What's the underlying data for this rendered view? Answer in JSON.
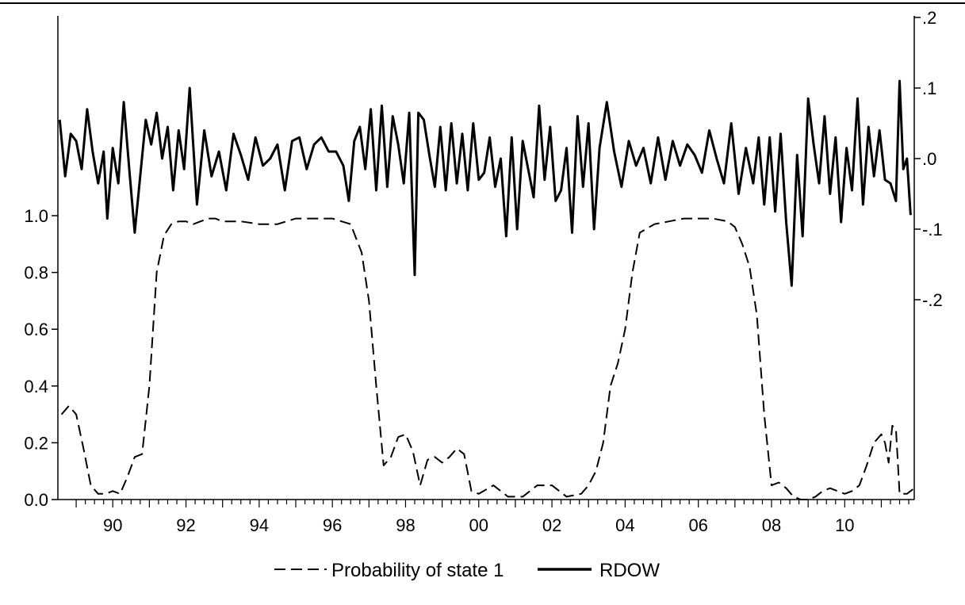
{
  "chart_data": {
    "type": "line",
    "title": "",
    "xlabel": "",
    "x_tick_labels": [
      "90",
      "92",
      "94",
      "96",
      "98",
      "00",
      "02",
      "04",
      "06",
      "08",
      "10"
    ],
    "x_range": [
      1988.5,
      2011.9
    ],
    "x_tick_positions": [
      1990,
      1992,
      1994,
      1996,
      1998,
      2000,
      2002,
      2004,
      2006,
      2008,
      2010
    ],
    "left_axis": {
      "ylim": [
        0.0,
        1.0
      ],
      "tick_labels": [
        "0.0",
        "0.2",
        "0.4",
        "0.6",
        "0.8",
        "1.0"
      ],
      "tick_values": [
        0.0,
        0.2,
        0.4,
        0.6,
        0.8,
        1.0
      ]
    },
    "right_axis": {
      "ylim": [
        -0.3,
        0.2
      ],
      "tick_labels": [
        ".2",
        ".1",
        ".0",
        "-.1",
        "-.2"
      ],
      "tick_values": [
        0.2,
        0.1,
        0.0,
        -0.1,
        -0.2
      ]
    },
    "grid": false,
    "legend_position": "bottom-center",
    "series": [
      {
        "name": "Probability of state 1",
        "axis": "left",
        "style": "dashed",
        "x": [
          1988.6,
          1988.8,
          1989.0,
          1989.2,
          1989.4,
          1989.6,
          1989.8,
          1990.0,
          1990.2,
          1990.4,
          1990.6,
          1990.8,
          1991.0,
          1991.2,
          1991.4,
          1991.6,
          1991.8,
          1992.0,
          1992.2,
          1992.4,
          1992.6,
          1992.8,
          1993.0,
          1993.5,
          1994.0,
          1994.5,
          1995.0,
          1995.5,
          1996.0,
          1996.5,
          1996.8,
          1997.0,
          1997.2,
          1997.4,
          1997.6,
          1997.8,
          1998.0,
          1998.2,
          1998.4,
          1998.6,
          1998.8,
          1999.0,
          1999.2,
          1999.4,
          1999.6,
          1999.8,
          2000.0,
          2000.4,
          2000.8,
          2001.2,
          2001.6,
          2002.0,
          2002.4,
          2002.8,
          2003.0,
          2003.2,
          2003.4,
          2003.6,
          2003.8,
          2004.0,
          2004.2,
          2004.4,
          2004.8,
          2005.2,
          2005.6,
          2006.0,
          2006.4,
          2006.8,
          2007.0,
          2007.2,
          2007.4,
          2007.6,
          2007.8,
          2008.0,
          2008.2,
          2008.4,
          2008.6,
          2008.8,
          2009.0,
          2009.2,
          2009.4,
          2009.6,
          2009.8,
          2010.0,
          2010.2,
          2010.4,
          2010.6,
          2010.8,
          2011.0,
          2011.1,
          2011.2,
          2011.3,
          2011.4,
          2011.5,
          2011.7,
          2011.9
        ],
        "values": [
          0.3,
          0.33,
          0.3,
          0.18,
          0.05,
          0.02,
          0.02,
          0.03,
          0.02,
          0.08,
          0.15,
          0.16,
          0.4,
          0.8,
          0.93,
          0.97,
          0.98,
          0.98,
          0.97,
          0.98,
          0.99,
          0.99,
          0.98,
          0.98,
          0.97,
          0.97,
          0.99,
          0.99,
          0.99,
          0.97,
          0.87,
          0.7,
          0.4,
          0.12,
          0.15,
          0.22,
          0.23,
          0.17,
          0.05,
          0.14,
          0.15,
          0.13,
          0.15,
          0.18,
          0.16,
          0.03,
          0.02,
          0.05,
          0.01,
          0.01,
          0.05,
          0.05,
          0.01,
          0.02,
          0.05,
          0.1,
          0.2,
          0.4,
          0.48,
          0.6,
          0.8,
          0.94,
          0.97,
          0.98,
          0.99,
          0.99,
          0.99,
          0.98,
          0.96,
          0.9,
          0.82,
          0.65,
          0.3,
          0.05,
          0.06,
          0.04,
          0.01,
          0.0,
          0.0,
          0.01,
          0.03,
          0.04,
          0.03,
          0.02,
          0.03,
          0.05,
          0.12,
          0.2,
          0.23,
          0.2,
          0.13,
          0.26,
          0.25,
          0.02,
          0.02,
          0.04
        ]
      },
      {
        "name": "RDOW",
        "axis": "right",
        "style": "solid",
        "x": [
          1988.55,
          1988.7,
          1988.85,
          1989.0,
          1989.15,
          1989.3,
          1989.45,
          1989.6,
          1989.75,
          1989.85,
          1990.0,
          1990.15,
          1990.3,
          1990.45,
          1990.6,
          1990.75,
          1990.9,
          1991.05,
          1991.2,
          1991.35,
          1991.5,
          1991.65,
          1991.8,
          1991.95,
          1992.1,
          1992.3,
          1992.5,
          1992.7,
          1992.9,
          1993.1,
          1993.3,
          1993.5,
          1993.7,
          1993.9,
          1994.1,
          1994.3,
          1994.5,
          1994.7,
          1994.9,
          1995.1,
          1995.3,
          1995.5,
          1995.7,
          1995.9,
          1996.1,
          1996.3,
          1996.45,
          1996.6,
          1996.75,
          1996.9,
          1997.05,
          1997.2,
          1997.35,
          1997.5,
          1997.65,
          1997.8,
          1997.95,
          1998.1,
          1998.25,
          1998.35,
          1998.5,
          1998.65,
          1998.8,
          1998.95,
          1999.1,
          1999.25,
          1999.4,
          1999.55,
          1999.7,
          1999.85,
          2000.0,
          2000.15,
          2000.3,
          2000.45,
          2000.6,
          2000.75,
          2000.9,
          2001.05,
          2001.2,
          2001.35,
          2001.5,
          2001.65,
          2001.8,
          2001.95,
          2002.1,
          2002.25,
          2002.4,
          2002.55,
          2002.7,
          2002.85,
          2003.0,
          2003.15,
          2003.3,
          2003.5,
          2003.7,
          2003.9,
          2004.1,
          2004.3,
          2004.5,
          2004.7,
          2004.9,
          2005.1,
          2005.3,
          2005.5,
          2005.7,
          2005.9,
          2006.1,
          2006.3,
          2006.5,
          2006.7,
          2006.9,
          2007.1,
          2007.3,
          2007.5,
          2007.65,
          2007.8,
          2007.95,
          2008.1,
          2008.25,
          2008.4,
          2008.55,
          2008.7,
          2008.85,
          2009.0,
          2009.15,
          2009.3,
          2009.45,
          2009.6,
          2009.75,
          2009.9,
          2010.05,
          2010.2,
          2010.35,
          2010.5,
          2010.65,
          2010.8,
          2010.95,
          2011.1,
          2011.25,
          2011.4,
          2011.5,
          2011.6,
          2011.7,
          2011.8
        ],
        "values": [
          0.055,
          -0.025,
          0.035,
          0.025,
          -0.015,
          0.07,
          0.01,
          -0.035,
          0.01,
          -0.085,
          0.015,
          -0.035,
          0.08,
          -0.015,
          -0.105,
          -0.025,
          0.055,
          0.02,
          0.065,
          0.0,
          0.045,
          -0.045,
          0.04,
          -0.015,
          0.1,
          -0.065,
          0.04,
          -0.025,
          0.01,
          -0.045,
          0.035,
          0.005,
          -0.03,
          0.03,
          -0.01,
          0.0,
          0.02,
          -0.045,
          0.025,
          0.03,
          -0.015,
          0.02,
          0.03,
          0.01,
          0.01,
          -0.01,
          -0.06,
          0.025,
          0.045,
          -0.015,
          0.07,
          -0.045,
          0.075,
          -0.04,
          0.06,
          0.02,
          -0.035,
          0.065,
          -0.165,
          0.065,
          0.055,
          0.005,
          -0.04,
          0.045,
          -0.045,
          0.05,
          -0.035,
          0.035,
          -0.045,
          0.05,
          -0.03,
          -0.02,
          0.03,
          -0.04,
          0.0,
          -0.11,
          0.03,
          -0.1,
          0.025,
          -0.015,
          -0.055,
          0.075,
          -0.03,
          0.045,
          -0.06,
          -0.045,
          0.015,
          -0.105,
          0.06,
          -0.04,
          0.05,
          -0.1,
          0.015,
          0.08,
          0.01,
          -0.04,
          0.025,
          -0.01,
          0.015,
          -0.035,
          0.03,
          -0.03,
          0.025,
          -0.01,
          0.02,
          0.005,
          -0.02,
          0.04,
          0.0,
          -0.035,
          0.05,
          -0.05,
          0.015,
          -0.035,
          0.03,
          -0.065,
          0.03,
          -0.075,
          0.035,
          -0.09,
          -0.18,
          0.005,
          -0.11,
          0.085,
          0.02,
          -0.035,
          0.06,
          -0.05,
          0.03,
          -0.09,
          0.015,
          -0.045,
          0.085,
          -0.065,
          0.045,
          -0.025,
          0.04,
          -0.03,
          -0.035,
          -0.06,
          0.11,
          -0.015,
          0.0,
          -0.08
        ]
      }
    ]
  },
  "legend": {
    "items": [
      {
        "label": "Probability of state 1",
        "style": "dashed"
      },
      {
        "label": "RDOW",
        "style": "solid"
      }
    ]
  },
  "colors": {
    "line": "#000000",
    "background": "#ffffff"
  }
}
